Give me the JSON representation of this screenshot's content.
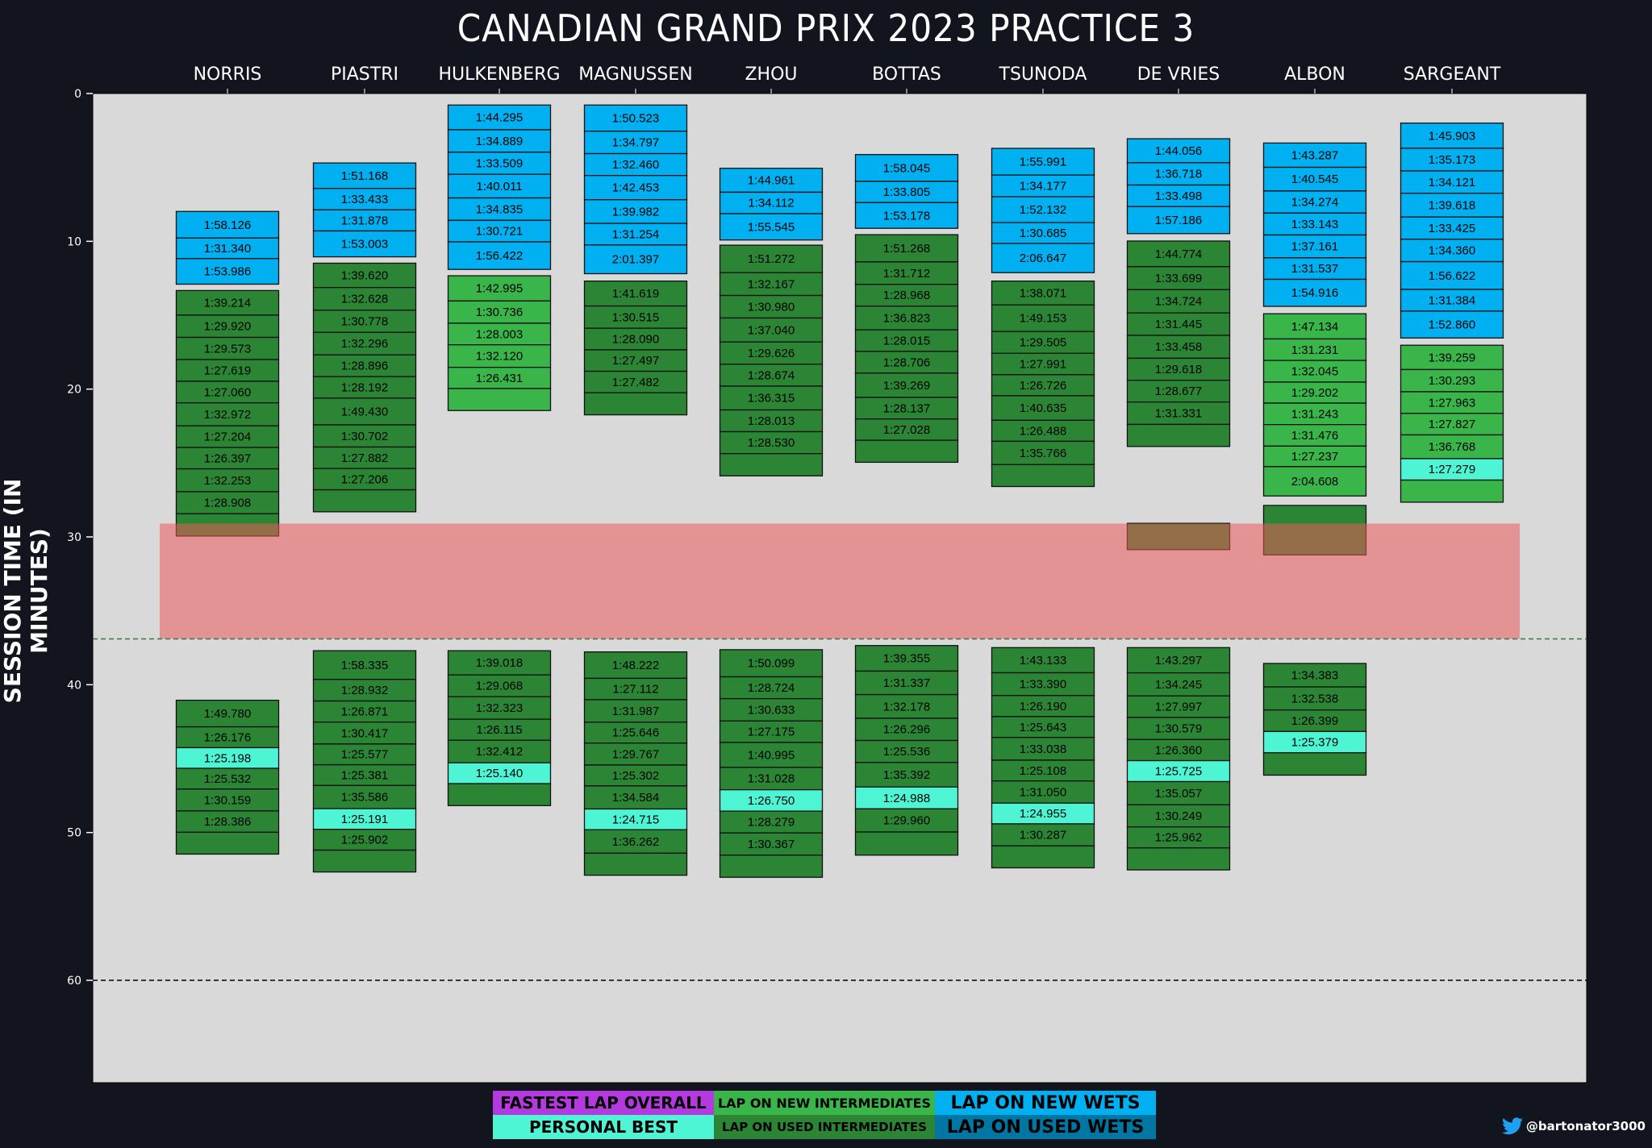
{
  "chart_data": {
    "type": "timeline-bar",
    "title": "CANADIAN GRAND PRIX 2023 PRACTICE 3",
    "ylabel": "SESSION TIME (IN MINUTES)",
    "ylim": [
      0,
      67
    ],
    "yticks": [
      0,
      10,
      20,
      30,
      40,
      50,
      60
    ],
    "reference_lines": [
      {
        "y": 36.9,
        "style": "dashed",
        "color": "#2e7d32"
      },
      {
        "y": 60,
        "style": "dashed",
        "color": "#000000"
      }
    ],
    "red_flag_period": {
      "from": 29.1,
      "to": 36.9,
      "color": "#e39393"
    },
    "colors": {
      "fastest": "#b43ae0",
      "personal_best": "#4ef5d5",
      "new_inter": "#39b54a",
      "used_inter": "#2b8535",
      "new_wet": "#00b0f0",
      "used_wet": "#0077a3",
      "background": "#12151d",
      "plot": "#d9d9d9"
    },
    "drivers": [
      {
        "name": "NORRIS",
        "stints": [
          {
            "tyre": "new_wet",
            "start": 7.98,
            "end": 12.9,
            "laps": [
              "1:58.126",
              "1:31.340",
              "1:53.986"
            ],
            "in_lap": false
          },
          {
            "tyre": "used_inter",
            "start": 13.33,
            "end": 29.94,
            "laps": [
              "1:39.214",
              "1:29.920",
              "1:29.573",
              "1:27.619",
              "1:27.060",
              "1:32.972",
              "1:27.204",
              "1:26.397",
              "1:32.253",
              "1:28.908"
            ],
            "in_lap": true
          },
          {
            "tyre": "used_inter",
            "start": 41.05,
            "end": 51.46,
            "laps": [
              "1:49.780",
              "1:26.176",
              "1:25.198",
              "1:25.532",
              "1:30.159",
              "1:28.386"
            ],
            "pb": "1:25.198",
            "in_lap": true
          }
        ]
      },
      {
        "name": "PIASTRI",
        "stints": [
          {
            "tyre": "new_wet",
            "start": 4.7,
            "end": 11.05,
            "laps": [
              "1:51.168",
              "1:33.433",
              "1:31.878",
              "1:53.003"
            ],
            "in_lap": false
          },
          {
            "tyre": "used_inter",
            "start": 11.48,
            "end": 28.3,
            "laps": [
              "1:39.620",
              "1:32.628",
              "1:30.778",
              "1:32.296",
              "1:28.896",
              "1:28.192",
              "1:49.430",
              "1:30.702",
              "1:27.882",
              "1:27.206"
            ],
            "in_lap": true
          },
          {
            "tyre": "used_inter",
            "start": 37.7,
            "end": 52.67,
            "laps": [
              "1:58.335",
              "1:28.932",
              "1:26.871",
              "1:30.417",
              "1:25.577",
              "1:25.381",
              "1:35.586",
              "1:25.191",
              "1:25.902"
            ],
            "pb": "1:25.191",
            "in_lap": true
          }
        ]
      },
      {
        "name": "HULKENBERG",
        "stints": [
          {
            "tyre": "new_wet",
            "start": 0.78,
            "end": 11.9,
            "laps": [
              "1:44.295",
              "1:34.889",
              "1:33.509",
              "1:40.011",
              "1:34.835",
              "1:30.721",
              "1:56.422"
            ],
            "in_lap": false
          },
          {
            "tyre": "new_inter",
            "start": 12.33,
            "end": 21.45,
            "laps": [
              "1:42.995",
              "1:30.736",
              "1:28.003",
              "1:32.120",
              "1:26.431"
            ],
            "in_lap": true
          },
          {
            "tyre": "used_inter",
            "start": 37.7,
            "end": 48.18,
            "laps": [
              "1:39.018",
              "1:29.068",
              "1:32.323",
              "1:26.115",
              "1:32.412",
              "1:25.140"
            ],
            "pb": "1:25.140",
            "in_lap": true
          }
        ]
      },
      {
        "name": "MAGNUSSEN",
        "stints": [
          {
            "tyre": "new_wet",
            "start": 0.78,
            "end": 12.19,
            "laps": [
              "1:50.523",
              "1:34.797",
              "1:32.460",
              "1:42.453",
              "1:39.982",
              "1:31.254",
              "2:01.397"
            ],
            "in_lap": false
          },
          {
            "tyre": "used_inter",
            "start": 12.69,
            "end": 21.74,
            "laps": [
              "1:41.619",
              "1:30.515",
              "1:28.090",
              "1:27.497",
              "1:27.482"
            ],
            "in_lap": true
          },
          {
            "tyre": "used_inter",
            "start": 37.78,
            "end": 52.89,
            "laps": [
              "1:48.222",
              "1:27.112",
              "1:31.987",
              "1:25.646",
              "1:29.767",
              "1:25.302",
              "1:34.584",
              "1:24.715",
              "1:36.262"
            ],
            "pb": "1:24.715",
            "in_lap": true
          }
        ]
      },
      {
        "name": "ZHOU",
        "stints": [
          {
            "tyre": "new_wet",
            "start": 5.06,
            "end": 9.91,
            "laps": [
              "1:44.961",
              "1:34.112",
              "1:55.545"
            ],
            "in_lap": false
          },
          {
            "tyre": "used_inter",
            "start": 10.26,
            "end": 25.87,
            "laps": [
              "1:51.272",
              "1:32.167",
              "1:30.980",
              "1:37.040",
              "1:29.626",
              "1:28.674",
              "1:36.315",
              "1:28.013",
              "1:28.530"
            ],
            "in_lap": true
          },
          {
            "tyre": "used_inter",
            "start": 37.63,
            "end": 53.03,
            "laps": [
              "1:50.099",
              "1:28.724",
              "1:30.633",
              "1:27.175",
              "1:40.995",
              "1:31.028",
              "1:26.750",
              "1:28.279",
              "1:30.367"
            ],
            "pb": "1:26.750",
            "in_lap": true
          }
        ]
      },
      {
        "name": "BOTTAS",
        "stints": [
          {
            "tyre": "new_wet",
            "start": 4.13,
            "end": 9.12,
            "laps": [
              "1:58.045",
              "1:33.805",
              "1:53.178"
            ],
            "in_lap": false
          },
          {
            "tyre": "used_inter",
            "start": 9.55,
            "end": 24.95,
            "laps": [
              "1:51.268",
              "1:31.712",
              "1:28.968",
              "1:36.823",
              "1:28.015",
              "1:28.706",
              "1:39.269",
              "1:28.137",
              "1:27.028"
            ],
            "in_lap": true
          },
          {
            "tyre": "used_inter",
            "start": 37.35,
            "end": 51.53,
            "laps": [
              "1:39.355",
              "1:31.337",
              "1:32.178",
              "1:26.296",
              "1:25.536",
              "1:35.392",
              "1:24.988",
              "1:29.960"
            ],
            "pb": "1:24.988",
            "in_lap": true
          }
        ]
      },
      {
        "name": "TSUNODA",
        "stints": [
          {
            "tyre": "new_wet",
            "start": 3.71,
            "end": 12.12,
            "laps": [
              "1:55.991",
              "1:34.177",
              "1:52.132",
              "1:30.685",
              "2:06.647"
            ],
            "in_lap": false
          },
          {
            "tyre": "used_inter",
            "start": 12.69,
            "end": 26.59,
            "laps": [
              "1:38.071",
              "1:49.153",
              "1:29.505",
              "1:27.991",
              "1:26.726",
              "1:40.635",
              "1:26.488",
              "1:35.766"
            ],
            "in_lap": true
          },
          {
            "tyre": "used_inter",
            "start": 37.49,
            "end": 52.39,
            "laps": [
              "1:43.133",
              "1:33.390",
              "1:26.190",
              "1:25.643",
              "1:33.038",
              "1:25.108",
              "1:31.050",
              "1:24.955",
              "1:30.287"
            ],
            "pb": "1:24.955",
            "in_lap": true
          }
        ]
      },
      {
        "name": "DE VRIES",
        "stints": [
          {
            "tyre": "new_wet",
            "start": 3.06,
            "end": 9.48,
            "laps": [
              "1:44.056",
              "1:36.718",
              "1:33.498",
              "1:57.186"
            ],
            "in_lap": false
          },
          {
            "tyre": "used_inter",
            "start": 9.98,
            "end": 23.88,
            "laps": [
              "1:44.774",
              "1:33.699",
              "1:34.724",
              "1:31.445",
              "1:33.458",
              "1:29.618",
              "1:28.677",
              "1:31.331"
            ],
            "in_lap": true
          },
          {
            "tyre": "used_inter",
            "start": 29.08,
            "end": 30.86,
            "laps": [],
            "in_lap": true
          },
          {
            "tyre": "used_inter",
            "start": 37.49,
            "end": 52.53,
            "laps": [
              "1:43.297",
              "1:34.245",
              "1:27.997",
              "1:30.579",
              "1:26.360",
              "1:25.725",
              "1:35.057",
              "1:30.249",
              "1:25.962"
            ],
            "pb": "1:25.725",
            "in_lap": true
          }
        ]
      },
      {
        "name": "ALBON",
        "stints": [
          {
            "tyre": "new_wet",
            "start": 3.35,
            "end": 14.4,
            "laps": [
              "1:43.287",
              "1:40.545",
              "1:34.274",
              "1:33.143",
              "1:37.161",
              "1:31.537",
              "1:54.916"
            ],
            "in_lap": false
          },
          {
            "tyre": "new_inter",
            "start": 14.9,
            "end": 27.23,
            "laps": [
              "1:47.134",
              "1:31.231",
              "1:32.045",
              "1:29.202",
              "1:31.243",
              "1:31.476",
              "1:27.237",
              "2:04.608"
            ],
            "in_lap": false
          },
          {
            "tyre": "used_inter",
            "start": 27.87,
            "end": 31.22,
            "laps": [],
            "in_lap": true
          },
          {
            "tyre": "used_inter",
            "start": 38.56,
            "end": 46.12,
            "laps": [
              "1:34.383",
              "1:32.538",
              "1:26.399",
              "1:25.379"
            ],
            "pb": "1:25.379",
            "in_lap": true
          }
        ]
      },
      {
        "name": "SARGEANT",
        "stints": [
          {
            "tyre": "new_wet",
            "start": 2.0,
            "end": 16.54,
            "laps": [
              "1:45.903",
              "1:35.173",
              "1:34.121",
              "1:39.618",
              "1:33.425",
              "1:34.360",
              "1:56.622",
              "1:31.384",
              "1:52.860"
            ],
            "in_lap": false
          },
          {
            "tyre": "new_inter",
            "start": 17.03,
            "end": 27.65,
            "laps": [
              "1:39.259",
              "1:30.293",
              "1:27.963",
              "1:27.827",
              "1:36.768",
              "1:27.279"
            ],
            "pb": "1:27.279",
            "in_lap": true
          }
        ]
      }
    ]
  },
  "legend": {
    "fastest": "FASTEST LAP OVERALL",
    "new_inter": "LAP ON NEW INTERMEDIATES",
    "new_wet": "LAP ON NEW WETS",
    "personal_best": "PERSONAL BEST",
    "used_inter": "LAP ON USED INTERMEDIATES",
    "used_wet": "LAP ON USED WETS"
  },
  "credit": {
    "icon": "twitter-bird-icon",
    "handle": "@bartonator3000"
  }
}
